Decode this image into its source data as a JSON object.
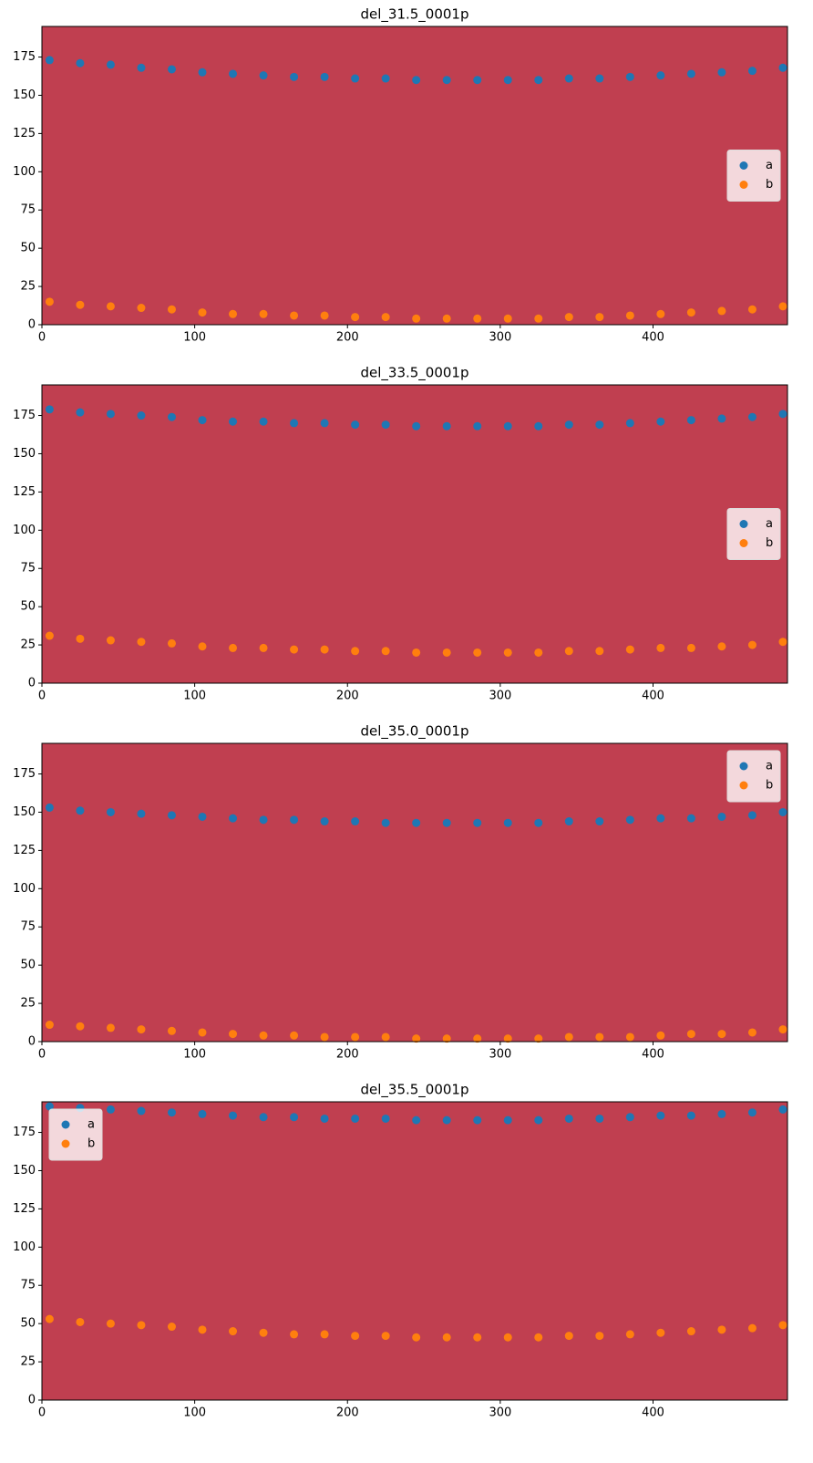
{
  "chart_data": [
    {
      "type": "scatter",
      "title": "del_31.5_0001p",
      "xlim": [
        0,
        488
      ],
      "ylim": [
        0,
        195
      ],
      "xticks": [
        0,
        100,
        200,
        300,
        400
      ],
      "yticks": [
        0,
        25,
        50,
        75,
        100,
        125,
        150,
        175
      ],
      "legend": "center right",
      "x": [
        5,
        25,
        45,
        65,
        85,
        105,
        125,
        145,
        165,
        185,
        205,
        225,
        245,
        265,
        285,
        305,
        325,
        345,
        365,
        385,
        405,
        425,
        445,
        465,
        485
      ],
      "series": [
        {
          "name": "a",
          "color": "#1f77b4",
          "values": [
            173,
            171,
            170,
            168,
            167,
            165,
            164,
            163,
            162,
            162,
            161,
            161,
            160,
            160,
            160,
            160,
            160,
            161,
            161,
            162,
            163,
            164,
            165,
            166,
            168
          ]
        },
        {
          "name": "b",
          "color": "#ff7f0e",
          "values": [
            15,
            13,
            12,
            11,
            10,
            8,
            7,
            7,
            6,
            6,
            5,
            5,
            4,
            4,
            4,
            4,
            4,
            5,
            5,
            6,
            7,
            8,
            9,
            10,
            12
          ]
        }
      ]
    },
    {
      "type": "scatter",
      "title": "del_33.5_0001p",
      "xlim": [
        0,
        488
      ],
      "ylim": [
        0,
        195
      ],
      "xticks": [
        0,
        100,
        200,
        300,
        400
      ],
      "yticks": [
        0,
        25,
        50,
        75,
        100,
        125,
        150,
        175
      ],
      "legend": "center right",
      "x": [
        5,
        25,
        45,
        65,
        85,
        105,
        125,
        145,
        165,
        185,
        205,
        225,
        245,
        265,
        285,
        305,
        325,
        345,
        365,
        385,
        405,
        425,
        445,
        465,
        485
      ],
      "series": [
        {
          "name": "a",
          "color": "#1f77b4",
          "values": [
            179,
            177,
            176,
            175,
            174,
            172,
            171,
            171,
            170,
            170,
            169,
            169,
            168,
            168,
            168,
            168,
            168,
            169,
            169,
            170,
            171,
            172,
            173,
            174,
            176
          ]
        },
        {
          "name": "b",
          "color": "#ff7f0e",
          "values": [
            31,
            29,
            28,
            27,
            26,
            24,
            23,
            23,
            22,
            22,
            21,
            21,
            20,
            20,
            20,
            20,
            20,
            21,
            21,
            22,
            23,
            23,
            24,
            25,
            27
          ]
        }
      ]
    },
    {
      "type": "scatter",
      "title": "del_35.0_0001p",
      "xlim": [
        0,
        488
      ],
      "ylim": [
        0,
        195
      ],
      "xticks": [
        0,
        100,
        200,
        300,
        400
      ],
      "yticks": [
        0,
        25,
        50,
        75,
        100,
        125,
        150,
        175
      ],
      "legend": "upper right",
      "x": [
        5,
        25,
        45,
        65,
        85,
        105,
        125,
        145,
        165,
        185,
        205,
        225,
        245,
        265,
        285,
        305,
        325,
        345,
        365,
        385,
        405,
        425,
        445,
        465,
        485
      ],
      "series": [
        {
          "name": "a",
          "color": "#1f77b4",
          "values": [
            153,
            151,
            150,
            149,
            148,
            147,
            146,
            145,
            145,
            144,
            144,
            143,
            143,
            143,
            143,
            143,
            143,
            144,
            144,
            145,
            146,
            146,
            147,
            148,
            150
          ]
        },
        {
          "name": "b",
          "color": "#ff7f0e",
          "values": [
            11,
            10,
            9,
            8,
            7,
            6,
            5,
            4,
            4,
            3,
            3,
            3,
            2,
            2,
            2,
            2,
            2,
            3,
            3,
            3,
            4,
            5,
            5,
            6,
            8
          ]
        }
      ]
    },
    {
      "type": "scatter",
      "title": "del_35.5_0001p",
      "xlim": [
        0,
        488
      ],
      "ylim": [
        0,
        195
      ],
      "xticks": [
        0,
        100,
        200,
        300,
        400
      ],
      "yticks": [
        0,
        25,
        50,
        75,
        100,
        125,
        150,
        175
      ],
      "legend": "upper left",
      "x": [
        5,
        25,
        45,
        65,
        85,
        105,
        125,
        145,
        165,
        185,
        205,
        225,
        245,
        265,
        285,
        305,
        325,
        345,
        365,
        385,
        405,
        425,
        445,
        465,
        485
      ],
      "series": [
        {
          "name": "a",
          "color": "#1f77b4",
          "values": [
            192,
            191,
            190,
            189,
            188,
            187,
            186,
            185,
            185,
            184,
            184,
            184,
            183,
            183,
            183,
            183,
            183,
            184,
            184,
            185,
            186,
            186,
            187,
            188,
            190
          ]
        },
        {
          "name": "b",
          "color": "#ff7f0e",
          "values": [
            53,
            51,
            50,
            49,
            48,
            46,
            45,
            44,
            43,
            43,
            42,
            42,
            41,
            41,
            41,
            41,
            41,
            42,
            42,
            43,
            44,
            45,
            46,
            47,
            49
          ]
        }
      ]
    }
  ]
}
